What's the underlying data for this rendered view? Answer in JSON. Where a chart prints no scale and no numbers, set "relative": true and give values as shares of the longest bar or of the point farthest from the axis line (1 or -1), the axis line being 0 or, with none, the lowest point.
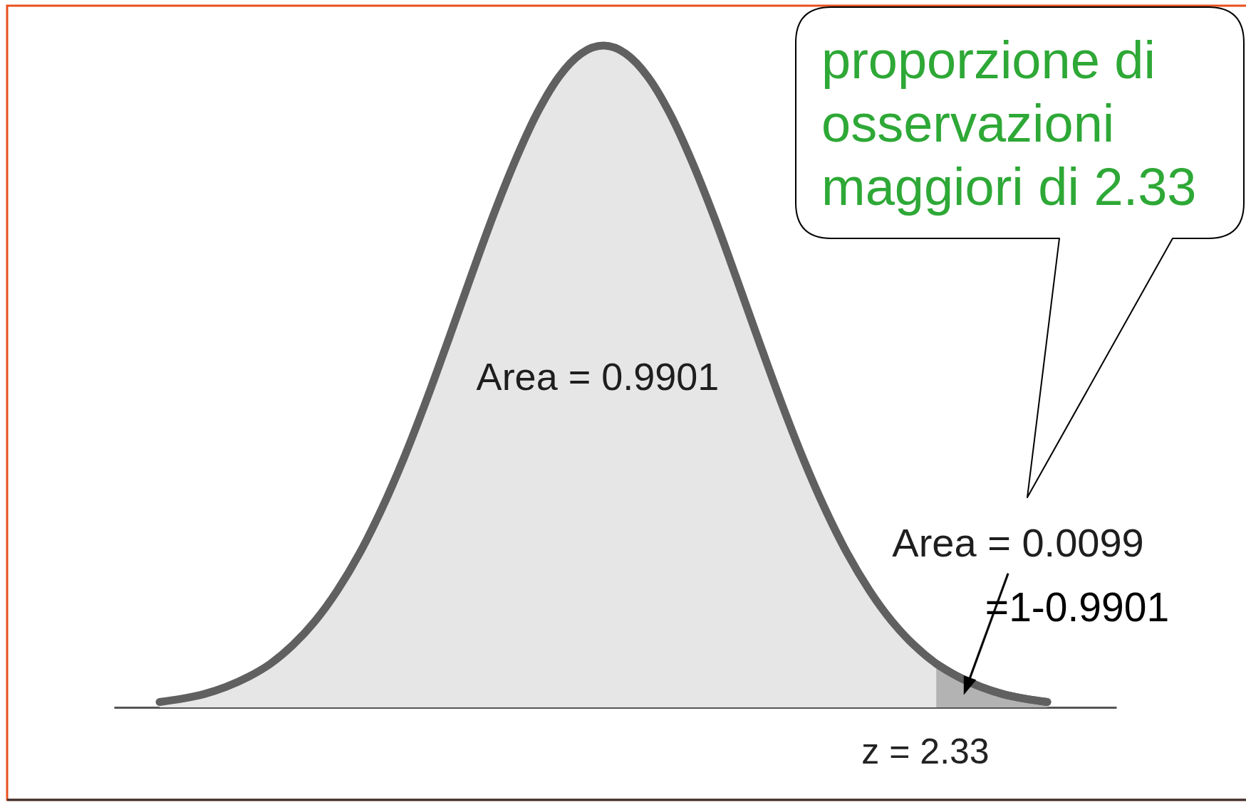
{
  "chart_data": {
    "type": "area",
    "relative": true,
    "categories": [
      null,
      null,
      null,
      null,
      null,
      null,
      null,
      null,
      null,
      null,
      null,
      null,
      null,
      null,
      null,
      null,
      null,
      null,
      null,
      null,
      null,
      null,
      null,
      null,
      null,
      null,
      null,
      null,
      null,
      null,
      null,
      null,
      null,
      null,
      null,
      null,
      null,
      null,
      null,
      null,
      null
    ],
    "series": [
      {
        "color": "#e6e6e6",
        "values": [
          0.008,
          0.013,
          0.02,
          0.031,
          0.046,
          0.066,
          0.094,
          0.13,
          0.176,
          0.232,
          0.299,
          0.376,
          0.462,
          0.554,
          0.648,
          0.74,
          0.824,
          0.897,
          0.953,
          0.988,
          1,
          0.988,
          0.953,
          0.897,
          0.824,
          0.74,
          0.648,
          0.554,
          0.462,
          0.376,
          0.299,
          0.232,
          0.176,
          0.13,
          0.094,
          0.066,
          0.046,
          0.031,
          0.02,
          0.013,
          0.008
        ]
      },
      {
        "color": "#b3b3b3",
        "values": [
          null,
          null,
          null,
          null,
          null,
          null,
          null,
          null,
          null,
          null,
          null,
          null,
          null,
          null,
          null,
          null,
          null,
          null,
          null,
          null,
          null,
          null,
          null,
          null,
          null,
          null,
          null,
          null,
          null,
          null,
          null,
          null,
          null,
          null,
          null,
          0.066,
          0.046,
          0.031,
          0.02,
          0.013,
          0.008
        ]
      }
    ],
    "annotations": [
      "Area = 0.9901",
      "Area = 0.0099",
      "=1-0.9901",
      "proporzione di osservazioni maggiori di 2.33",
      "z = 2.33"
    ]
  }
}
